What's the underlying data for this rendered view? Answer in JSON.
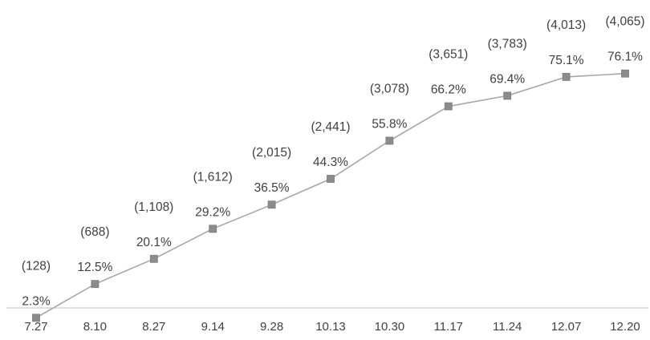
{
  "chart_data": {
    "type": "line",
    "title": "",
    "xlabel": "",
    "ylabel": "",
    "categories": [
      "7.27",
      "8.10",
      "8.27",
      "9.14",
      "9.28",
      "10.13",
      "10.30",
      "11.17",
      "11.24",
      "12.07",
      "12.20"
    ],
    "series": [
      {
        "values": [
          2.3,
          12.5,
          20.1,
          29.2,
          36.5,
          44.3,
          55.8,
          66.2,
          69.4,
          75.1,
          76.1
        ],
        "value_labels": [
          "2.3%",
          "12.5%",
          "20.1%",
          "29.2%",
          "36.5%",
          "44.3%",
          "55.8%",
          "66.2%",
          "69.4%",
          "75.1%",
          "76.1%"
        ],
        "annotations": [
          "(128)",
          "(688)",
          "(1,108)",
          "(1,612)",
          "(2,015)",
          "(2,441)",
          "(3,078)",
          "(3,651)",
          "(3,783)",
          "(4,013)",
          "(4,065)"
        ]
      }
    ],
    "ylim": [
      0,
      100
    ],
    "grid": false,
    "legend": "none",
    "colors": {
      "line": "#a6a6a6",
      "marker_fill": "#8c8c8c",
      "marker_stroke": "#7a7a7a",
      "axis": "#bfbfbf",
      "text": "#404040"
    }
  }
}
